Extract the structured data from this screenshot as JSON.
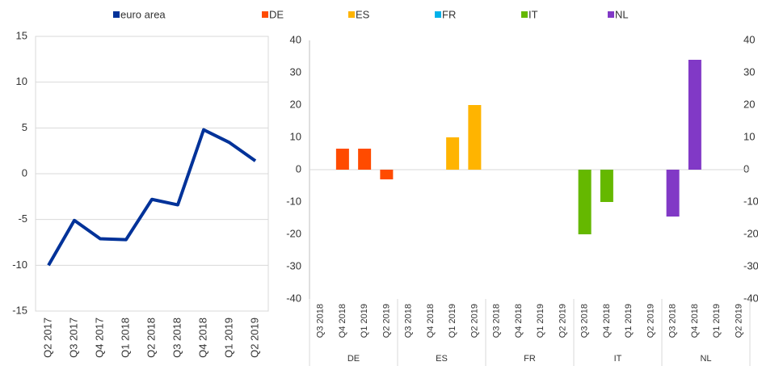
{
  "chart_data": [
    {
      "type": "line",
      "categories": [
        "Q2 2017",
        "Q3 2017",
        "Q4 2017",
        "Q1 2018",
        "Q2 2018",
        "Q3 2018",
        "Q4 2018",
        "Q1 2019",
        "Q2 2019"
      ],
      "series": [
        {
          "name": "euro area",
          "color": "#003299",
          "values": [
            -10,
            -5.1,
            -7.1,
            -7.2,
            -2.8,
            -3.4,
            4.8,
            3.4,
            1.4
          ]
        }
      ],
      "ylim": [
        -15,
        15
      ],
      "yticks": [
        -15,
        -10,
        -5,
        0,
        5,
        10,
        15
      ],
      "grid": true
    },
    {
      "type": "grouped-bar",
      "groups": [
        "DE",
        "ES",
        "FR",
        "IT",
        "NL"
      ],
      "categories": [
        "Q3 2018",
        "Q4 2018",
        "Q1 2019",
        "Q2 2019"
      ],
      "series": [
        {
          "name": "DE",
          "color": "#ff4b00",
          "values": [
            null,
            6.5,
            6.5,
            -3
          ]
        },
        {
          "name": "ES",
          "color": "#ffb400",
          "values": [
            null,
            null,
            10,
            20
          ]
        },
        {
          "name": "FR",
          "color": "#00b1ea",
          "values": [
            null,
            null,
            null,
            null
          ]
        },
        {
          "name": "IT",
          "color": "#65b800",
          "values": [
            -20,
            -10,
            null,
            null
          ]
        },
        {
          "name": "NL",
          "color": "#8139c6",
          "values": [
            -14.5,
            34,
            null,
            null
          ]
        }
      ],
      "ylim": [
        -40,
        40
      ],
      "yticks": [
        -40,
        -30,
        -20,
        -10,
        0,
        10,
        20,
        30,
        40
      ],
      "grid": false
    }
  ]
}
